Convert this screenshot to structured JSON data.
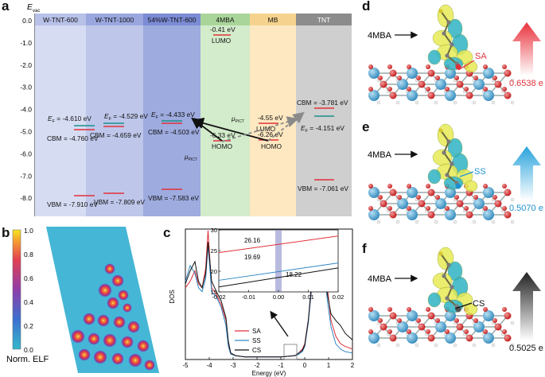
{
  "panels": {
    "a": "a",
    "b": "b",
    "c": "c",
    "d": "d",
    "e": "e",
    "f": "f"
  },
  "panel_a": {
    "y_axis_label": "E",
    "y_axis_subscript": "vac",
    "yticks": [
      "0.0",
      "-1.0",
      "-2.0",
      "-3.0",
      "-4.0",
      "-5.0",
      "-6.0",
      "-7.0",
      "-8.0"
    ],
    "columns": [
      {
        "name": "W-TNT-600",
        "header_color": "#b8c1e8",
        "body_color": "#d6dcf2"
      },
      {
        "name": "W-TNT-1000",
        "header_color": "#9aa7df",
        "body_color": "#bec7ea"
      },
      {
        "name": "54%W-TNT-600",
        "header_color": "#7b8bd4",
        "body_color": "#9eabdf"
      },
      {
        "name": "4MBA",
        "header_color": "#a9d59a",
        "body_color": "#d3eccb"
      },
      {
        "name": "MB",
        "header_color": "#f5d38e",
        "body_color": "#fde8c1"
      },
      {
        "name": "TNT",
        "header_color": "#8c8c8c",
        "body_color": "#cfcfcf"
      }
    ],
    "labels": {
      "w600_ef": "E",
      "w600_ef_val": " = -4.610 eV",
      "w600_cbm": "CBM = -4.760 eV",
      "w600_vbm": "VBM = -7.910 eV",
      "w1000_ef": "E",
      "w1000_ef_val": " = -4.529 eV",
      "w1000_cbm": "CBM = -4.659 eV",
      "w1000_vbm": "VBM = -7.809 eV",
      "w54_ef": "E",
      "w54_ef_val": " = -4.433 eV",
      "w54_cbm": "CBM = -4.503 eV",
      "w54_vbm": "VBM = -7.583 eV",
      "mba_lumo_val": "-0.41 eV",
      "mba_lumo": "LUMO",
      "mba_homo_val": "-6.33 eV",
      "mba_homo": "HOMO",
      "mb_lumo_val": "-4.55 eV",
      "mb_lumo": "LUMO",
      "mb_homo_val": "-6.26 eV",
      "mb_homo": "HOMO",
      "tnt_cbm": "CBM = -3.781 eV",
      "tnt_ef": "E",
      "tnt_ef_val": " = -4.151 eV",
      "tnt_vbm": "VBM = -7.061 eV",
      "mu_pict": "μ",
      "mu_sub": "PICT"
    }
  },
  "panel_b": {
    "colorbar_ticks": [
      "1.0",
      "0.8",
      "0.6",
      "0.4",
      "0.2",
      "0.0"
    ],
    "colorbar_label": "Norm. ELF"
  },
  "panel_c": {
    "chart_data": {
      "type": "line",
      "xlabel": "Energy (eV)",
      "ylabel": "DOS",
      "xlim": [
        -5,
        2
      ],
      "xticks": [
        "-5",
        "-4",
        "-3",
        "-2",
        "-1",
        "0",
        "1",
        "2"
      ],
      "series": [
        {
          "name": "SA",
          "color": "#e0303a",
          "x": [
            -5,
            -4.8,
            -4.6,
            -4.45,
            -4.3,
            -4.15,
            -4.05,
            -3.9,
            -3.7,
            -3.5,
            -3.3,
            -3.2,
            -3.1,
            -2.9,
            -2.5,
            -2.0,
            -1.0,
            -0.4,
            -0.25,
            -0.1,
            0.0,
            0.15,
            0.3,
            0.5,
            0.65,
            0.8,
            0.95,
            1.1,
            1.3,
            1.5,
            1.7,
            2.0
          ],
          "y": [
            0.55,
            0.6,
            0.68,
            0.58,
            0.55,
            0.7,
            0.99,
            0.55,
            0.5,
            0.42,
            0.3,
            0.12,
            0.05,
            0.03,
            0.02,
            0.02,
            0.02,
            0.03,
            0.05,
            0.08,
            0.12,
            0.3,
            0.55,
            0.62,
            0.68,
            0.6,
            0.55,
            0.3,
            0.18,
            0.12,
            0.1,
            0.08
          ]
        },
        {
          "name": "SS",
          "color": "#2f86c4",
          "x": [
            -5,
            -4.8,
            -4.6,
            -4.45,
            -4.3,
            -4.15,
            -4.05,
            -3.9,
            -3.7,
            -3.5,
            -3.3,
            -3.2,
            -3.1,
            -2.9,
            -2.5,
            -2.0,
            -1.0,
            -0.4,
            -0.25,
            -0.1,
            0.0,
            0.15,
            0.3,
            0.5,
            0.65,
            0.8,
            0.95,
            1.1,
            1.3,
            1.5,
            1.7,
            2.0
          ],
          "y": [
            0.6,
            0.72,
            0.66,
            0.55,
            0.52,
            0.62,
            0.88,
            0.52,
            0.48,
            0.4,
            0.26,
            0.1,
            0.04,
            0.03,
            0.02,
            0.02,
            0.02,
            0.03,
            0.04,
            0.06,
            0.1,
            0.28,
            0.58,
            0.85,
            0.8,
            0.7,
            0.45,
            0.25,
            0.12,
            0.08,
            0.06,
            0.05
          ]
        },
        {
          "name": "CS",
          "color": "#111111",
          "x": [
            -5,
            -4.8,
            -4.6,
            -4.45,
            -4.3,
            -4.15,
            -4.05,
            -3.9,
            -3.7,
            -3.5,
            -3.3,
            -3.2,
            -3.1,
            -2.9,
            -2.5,
            -2.0,
            -1.0,
            -0.4,
            -0.25,
            -0.1,
            0.0,
            0.15,
            0.3,
            0.5,
            0.65,
            0.8,
            0.95,
            1.1,
            1.3,
            1.5,
            1.7,
            2.0
          ],
          "y": [
            0.58,
            0.68,
            0.75,
            0.6,
            0.55,
            0.66,
            0.9,
            0.6,
            0.52,
            0.45,
            0.32,
            0.14,
            0.05,
            0.03,
            0.02,
            0.02,
            0.02,
            0.03,
            0.05,
            0.07,
            0.11,
            0.3,
            0.62,
            0.88,
            0.82,
            0.68,
            0.5,
            0.35,
            0.3,
            0.26,
            0.2,
            0.15
          ]
        }
      ],
      "legend": [
        "SA",
        "SS",
        "CS"
      ],
      "legend_placement": "bottom-center",
      "inset": {
        "xlim": [
          -0.02,
          0.02
        ],
        "ylim": [
          15,
          30
        ],
        "xticks": [
          "-0.02",
          "-0.01",
          "0.00",
          "0.01",
          "0.02"
        ],
        "yticks": [
          "30",
          "25",
          "20",
          "15"
        ],
        "annotations": [
          "26.16",
          "19.69",
          "18.22"
        ],
        "series": [
          {
            "name": "SA",
            "color": "#e0303a",
            "x": [
              -0.02,
              0.02
            ],
            "y": [
              24.5,
              28.5
            ]
          },
          {
            "name": "SS",
            "color": "#2f86c4",
            "x": [
              -0.02,
              0.02
            ],
            "y": [
              17.8,
              22.0
            ]
          },
          {
            "name": "CS",
            "color": "#111111",
            "x": [
              -0.02,
              0.02
            ],
            "y": [
              16.2,
              20.8
            ]
          }
        ]
      }
    }
  },
  "panel_d": {
    "molecule": "4MBA",
    "site": "SA",
    "charge": "0.6538 e",
    "arrow_color": "#e8333c",
    "site_color": "#e0303a"
  },
  "panel_e": {
    "molecule": "4MBA",
    "site": "SS",
    "charge": "0.5070 e",
    "arrow_color": "#29a3dc",
    "site_color": "#1e90d0"
  },
  "panel_f": {
    "molecule": "4MBA",
    "site": "CS",
    "charge": "0.5025 e",
    "arrow_color": "#222222",
    "site_color": "#111111"
  }
}
